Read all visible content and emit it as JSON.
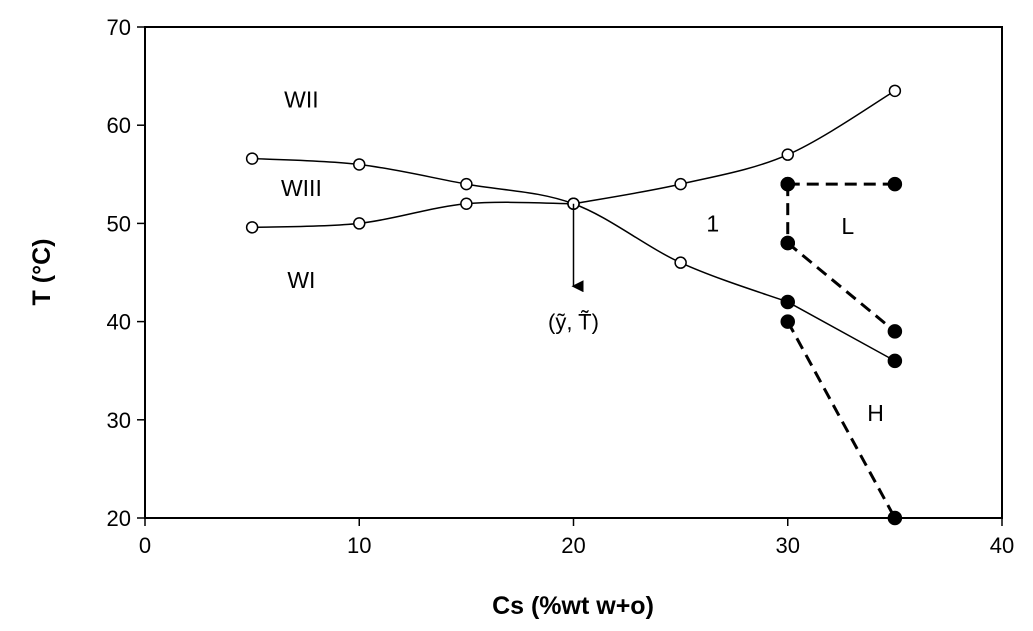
{
  "chart_data": {
    "type": "line",
    "xlabel": "Cs (%wt w+o)",
    "ylabel": "T (°C)",
    "xlim": [
      0,
      40
    ],
    "ylim": [
      20,
      70
    ],
    "xticks": [
      0,
      10,
      20,
      30,
      40
    ],
    "yticks": [
      20,
      30,
      40,
      50,
      60,
      70
    ],
    "grid": false,
    "legend": "none",
    "series": [
      {
        "style": "solid-open",
        "x": [
          5,
          10,
          15,
          20
        ],
        "y": [
          49.6,
          50,
          52,
          52
        ]
      },
      {
        "style": "solid-open",
        "x": [
          5,
          10,
          15,
          20,
          25,
          30
        ],
        "y": [
          56.6,
          56,
          54,
          52,
          46,
          42
        ]
      },
      {
        "style": "solid-open",
        "x": [
          20,
          25,
          30,
          35
        ],
        "y": [
          52,
          54,
          57,
          63.5
        ]
      },
      {
        "style": "solid-filled",
        "x": [
          30,
          35
        ],
        "y": [
          42,
          36
        ]
      },
      {
        "style": "dashed-filled",
        "x": [
          30,
          35
        ],
        "y": [
          54,
          54
        ]
      },
      {
        "style": "dashed-filled",
        "x": [
          30,
          30
        ],
        "y": [
          54,
          48
        ]
      },
      {
        "style": "dashed-filled",
        "x": [
          30,
          35
        ],
        "y": [
          48,
          39
        ]
      },
      {
        "style": "dashed-filled",
        "x": [
          30,
          35
        ],
        "y": [
          40,
          20
        ]
      }
    ],
    "regions": [
      {
        "label": "WII",
        "x": 7.3,
        "y": 61.8
      },
      {
        "label": "WIII",
        "x": 7.3,
        "y": 52.8
      },
      {
        "label": "WI",
        "x": 7.3,
        "y": 43.4
      },
      {
        "label": "1",
        "x": 26.5,
        "y": 49.2
      },
      {
        "label": "L",
        "x": 32.8,
        "y": 48.9
      },
      {
        "label": "H",
        "x": 34.1,
        "y": 29.9
      }
    ],
    "annotation": {
      "label": "(ỹ, T̃)",
      "arrow_from": [
        20,
        52
      ],
      "arrow_to": [
        20,
        43.6
      ],
      "text_at": [
        20,
        39.2
      ]
    }
  }
}
